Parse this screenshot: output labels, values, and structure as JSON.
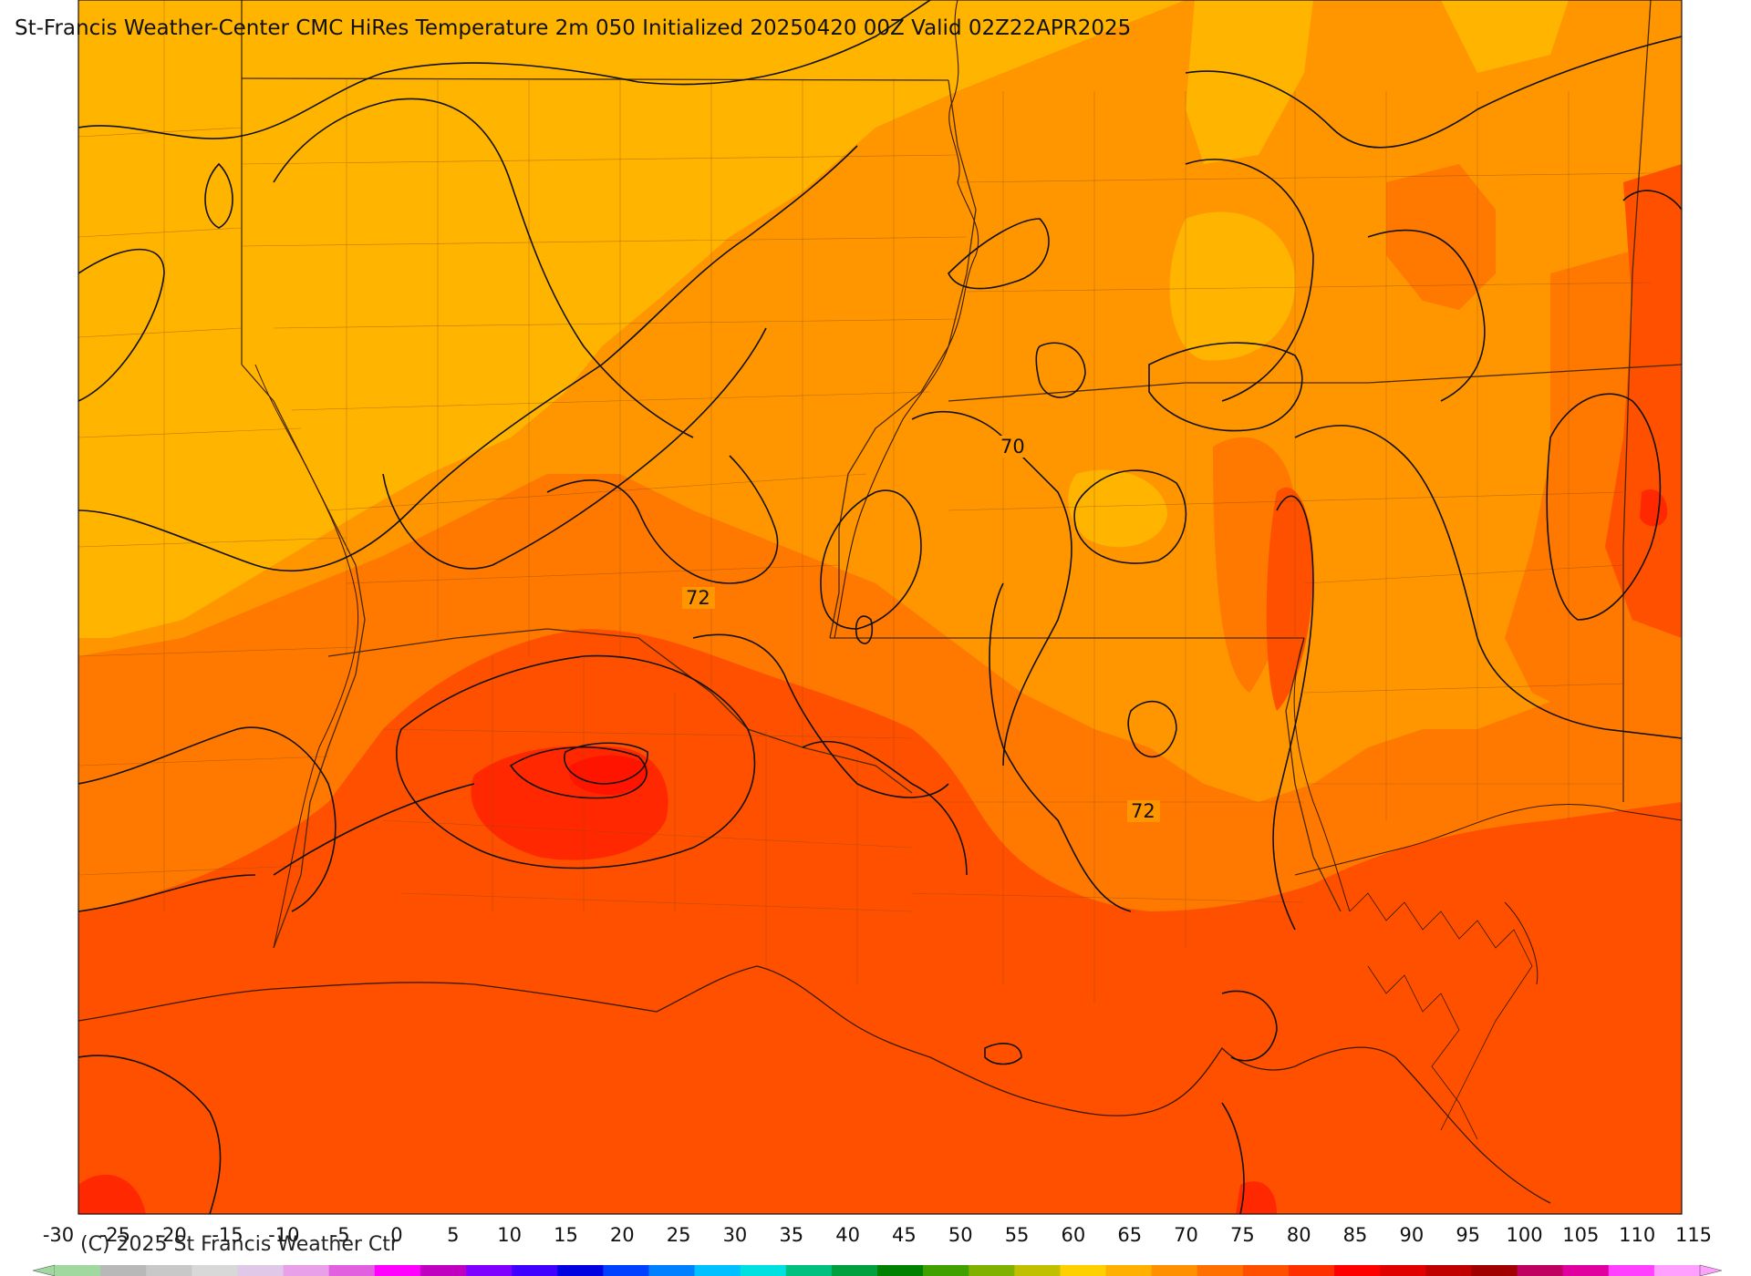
{
  "header": {
    "title": "St-Francis Weather-Center CMC HiRes Temperature 2m  050 Initialized 20250420 00Z Valid 02Z22APR2025"
  },
  "map": {
    "contour_labels": [
      "70",
      "72",
      "72"
    ],
    "fill_colors": {
      "light_orange": "#ffb400",
      "orange": "#ff9600",
      "dark_orange": "#ff7800",
      "red_orange": "#ff5000",
      "red": "#ff2800",
      "bright_red": "#ff1400",
      "gulf": "#ff4a00"
    }
  },
  "colorbar": {
    "ticks": [
      "-30",
      "-25",
      "-20",
      "-15",
      "-10",
      "-5",
      "0",
      "5",
      "10",
      "15",
      "20",
      "25",
      "30",
      "35",
      "40",
      "45",
      "50",
      "55",
      "60",
      "65",
      "70",
      "75",
      "80",
      "85",
      "90",
      "95",
      "100",
      "105",
      "110",
      "115"
    ],
    "colors": [
      "#a0d8a0",
      "#b8b8b8",
      "#c8c8c8",
      "#d8d8d8",
      "#e0c8e8",
      "#e8a0e8",
      "#e060e0",
      "#ff00ff",
      "#c000c0",
      "#8000ff",
      "#4000ff",
      "#0000e0",
      "#0040ff",
      "#0080ff",
      "#00c0ff",
      "#00e0e0",
      "#00c080",
      "#00a040",
      "#008000",
      "#40a000",
      "#80b000",
      "#c0c000",
      "#ffd000",
      "#ffb000",
      "#ff9000",
      "#ff7000",
      "#ff5000",
      "#ff3000",
      "#ff0000",
      "#e00000",
      "#c00000",
      "#a00000",
      "#c00060",
      "#e000a0",
      "#ff40ff",
      "#ffa0ff"
    ]
  },
  "footer": {
    "copyright": "(C) 2025 St Francis Weather Ctr"
  }
}
